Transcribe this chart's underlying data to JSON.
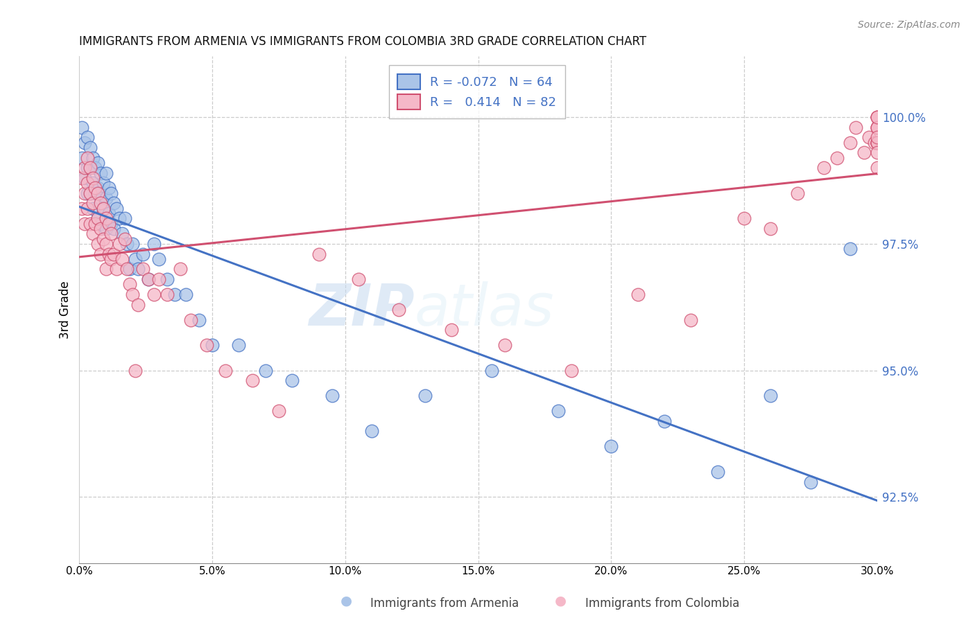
{
  "title": "IMMIGRANTS FROM ARMENIA VS IMMIGRANTS FROM COLOMBIA 3RD GRADE CORRELATION CHART",
  "source": "Source: ZipAtlas.com",
  "ylabel": "3rd Grade",
  "yticks": [
    92.5,
    95.0,
    97.5,
    100.0
  ],
  "ytick_labels": [
    "92.5%",
    "95.0%",
    "97.5%",
    "100.0%"
  ],
  "xlim": [
    0.0,
    0.3
  ],
  "ylim": [
    91.2,
    101.2
  ],
  "legend_r_armenia": "-0.072",
  "legend_n_armenia": "64",
  "legend_r_colombia": "0.414",
  "legend_n_colombia": "82",
  "color_armenia": "#aac4e8",
  "color_colombia": "#f5b8c8",
  "line_color_armenia": "#4472c4",
  "line_color_colombia": "#d05070",
  "watermark_zip": "ZIP",
  "watermark_atlas": "atlas",
  "armenia_x": [
    0.001,
    0.001,
    0.002,
    0.002,
    0.003,
    0.003,
    0.003,
    0.004,
    0.004,
    0.004,
    0.005,
    0.005,
    0.005,
    0.006,
    0.006,
    0.007,
    0.007,
    0.007,
    0.008,
    0.008,
    0.008,
    0.009,
    0.009,
    0.01,
    0.01,
    0.01,
    0.011,
    0.011,
    0.012,
    0.012,
    0.013,
    0.013,
    0.014,
    0.015,
    0.016,
    0.017,
    0.018,
    0.019,
    0.02,
    0.021,
    0.022,
    0.024,
    0.026,
    0.028,
    0.03,
    0.033,
    0.036,
    0.04,
    0.045,
    0.05,
    0.06,
    0.07,
    0.08,
    0.095,
    0.11,
    0.13,
    0.155,
    0.18,
    0.2,
    0.22,
    0.24,
    0.26,
    0.275,
    0.29
  ],
  "armenia_y": [
    99.8,
    99.2,
    99.5,
    98.8,
    99.6,
    99.0,
    98.5,
    99.4,
    99.0,
    98.5,
    99.2,
    98.7,
    98.2,
    99.0,
    98.5,
    99.1,
    98.6,
    98.0,
    98.9,
    98.4,
    97.9,
    98.7,
    98.2,
    98.9,
    98.4,
    97.8,
    98.6,
    98.1,
    98.5,
    97.9,
    98.3,
    97.8,
    98.2,
    98.0,
    97.7,
    98.0,
    97.5,
    97.0,
    97.5,
    97.2,
    97.0,
    97.3,
    96.8,
    97.5,
    97.2,
    96.8,
    96.5,
    96.5,
    96.0,
    95.5,
    95.5,
    95.0,
    94.8,
    94.5,
    93.8,
    94.5,
    95.0,
    94.2,
    93.5,
    94.0,
    93.0,
    94.5,
    92.8,
    97.4
  ],
  "colombia_x": [
    0.001,
    0.001,
    0.002,
    0.002,
    0.002,
    0.003,
    0.003,
    0.003,
    0.004,
    0.004,
    0.004,
    0.005,
    0.005,
    0.005,
    0.006,
    0.006,
    0.007,
    0.007,
    0.007,
    0.008,
    0.008,
    0.008,
    0.009,
    0.009,
    0.01,
    0.01,
    0.01,
    0.011,
    0.011,
    0.012,
    0.012,
    0.013,
    0.014,
    0.015,
    0.016,
    0.017,
    0.018,
    0.019,
    0.02,
    0.021,
    0.022,
    0.024,
    0.026,
    0.028,
    0.03,
    0.033,
    0.038,
    0.042,
    0.048,
    0.055,
    0.065,
    0.075,
    0.09,
    0.105,
    0.12,
    0.14,
    0.16,
    0.185,
    0.21,
    0.23,
    0.25,
    0.26,
    0.27,
    0.28,
    0.285,
    0.29,
    0.292,
    0.295,
    0.297,
    0.299,
    0.3,
    0.3,
    0.3,
    0.3,
    0.3,
    0.3,
    0.3,
    0.3,
    0.3,
    0.3,
    0.3,
    0.3
  ],
  "colombia_y": [
    98.8,
    98.2,
    99.0,
    98.5,
    97.9,
    99.2,
    98.7,
    98.2,
    99.0,
    98.5,
    97.9,
    98.8,
    98.3,
    97.7,
    98.6,
    97.9,
    98.5,
    98.0,
    97.5,
    98.3,
    97.8,
    97.3,
    98.2,
    97.6,
    98.0,
    97.5,
    97.0,
    97.9,
    97.3,
    97.7,
    97.2,
    97.3,
    97.0,
    97.5,
    97.2,
    97.6,
    97.0,
    96.7,
    96.5,
    95.0,
    96.3,
    97.0,
    96.8,
    96.5,
    96.8,
    96.5,
    97.0,
    96.0,
    95.5,
    95.0,
    94.8,
    94.2,
    97.3,
    96.8,
    96.2,
    95.8,
    95.5,
    95.0,
    96.5,
    96.0,
    98.0,
    97.8,
    98.5,
    99.0,
    99.2,
    99.5,
    99.8,
    99.3,
    99.6,
    99.5,
    99.0,
    99.5,
    99.8,
    100.0,
    99.5,
    99.8,
    100.0,
    99.5,
    99.8,
    99.3,
    99.6,
    100.0
  ]
}
